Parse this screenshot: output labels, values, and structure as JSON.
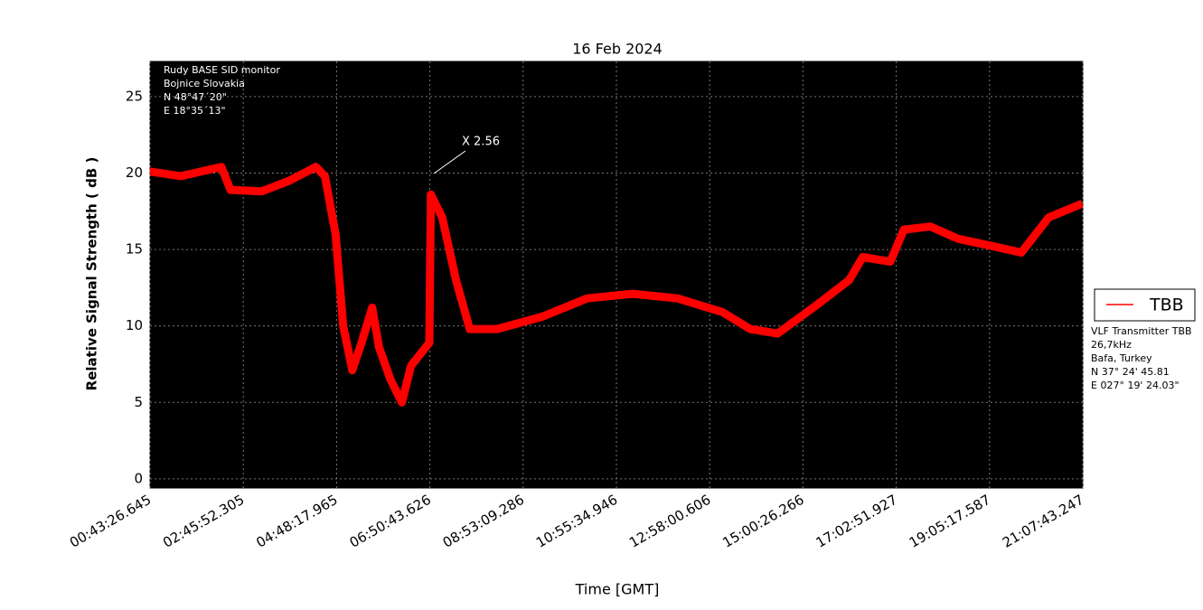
{
  "chart_data": {
    "type": "line",
    "title": "16 Feb 2024",
    "xlabel": "Time [GMT]",
    "ylabel": "Relative Signal Strength ( dB )",
    "annotation": "X 2.56",
    "station": [
      "Rudy BASE SID monitor",
      "Bojnice Slovakia",
      "N 48°47´20\"",
      "E 18°35´13\""
    ],
    "transmitter": [
      "VLF Transmitter TBB",
      "26,7kHz",
      "Bafa, Turkey",
      "N 37° 24' 45.81",
      "E 027° 19' 24.03\""
    ],
    "x": [
      "00:43",
      "01:24",
      "02:17",
      "02:29",
      "03:10",
      "03:46",
      "04:21",
      "04:33",
      "04:47",
      "04:57",
      "05:09",
      "05:21",
      "05:35",
      "05:44",
      "05:59",
      "06:14",
      "06:26",
      "06:50",
      "06:52",
      "07:07",
      "07:25",
      "07:43",
      "08:19",
      "09:18",
      "10:17",
      "11:17",
      "12:16",
      "13:15",
      "13:51",
      "14:27",
      "15:14",
      "16:01",
      "16:19",
      "16:55",
      "17:13",
      "17:48",
      "18:24",
      "19:11",
      "19:47",
      "20:23",
      "21:07"
    ],
    "series": [
      {
        "name": "TBB",
        "color": "#ff0000",
        "values": [
          20.1,
          19.8,
          20.4,
          18.9,
          18.8,
          19.5,
          20.4,
          19.8,
          16.0,
          10.0,
          7.1,
          8.9,
          11.2,
          8.6,
          6.5,
          5.0,
          7.4,
          8.9,
          18.6,
          17.1,
          13.0,
          9.8,
          9.8,
          10.6,
          11.8,
          12.1,
          11.8,
          10.9,
          9.8,
          9.5,
          11.2,
          13.0,
          14.5,
          14.2,
          16.3,
          16.5,
          15.7,
          15.2,
          14.8,
          17.1,
          18.0
        ]
      }
    ],
    "xlim": [
      "00:43:26.645",
      "21:07:43.247"
    ],
    "xticks": [
      "00:43:26.645",
      "02:45:52.305",
      "04:48:17.965",
      "06:50:43.626",
      "08:53:09.286",
      "10:55:34.946",
      "12:58:00.606",
      "15:00:26.266",
      "17:02:51.927",
      "19:05:17.587",
      "21:07:43.247"
    ],
    "ylim": [
      -0.6,
      27.3
    ],
    "yticks": [
      0,
      5,
      10,
      15,
      20,
      25
    ],
    "grid": true,
    "legend": "right"
  }
}
